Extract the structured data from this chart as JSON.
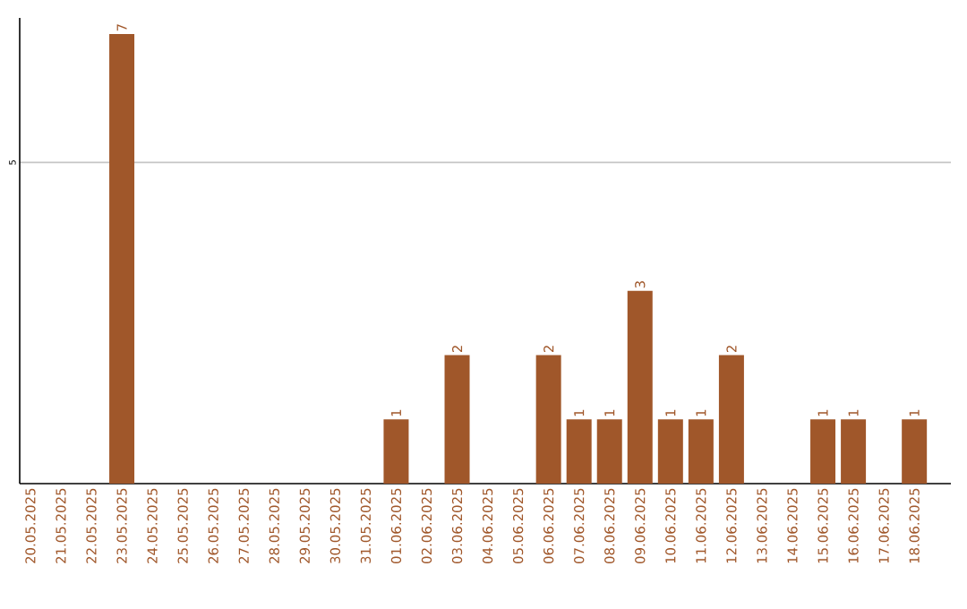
{
  "chart_data": {
    "type": "bar",
    "categories": [
      "20.05.2025",
      "21.05.2025",
      "22.05.2025",
      "23.05.2025",
      "24.05.2025",
      "25.05.2025",
      "26.05.2025",
      "27.05.2025",
      "28.05.2025",
      "29.05.2025",
      "30.05.2025",
      "31.05.2025",
      "01.06.2025",
      "02.06.2025",
      "03.06.2025",
      "04.06.2025",
      "05.06.2025",
      "06.06.2025",
      "07.06.2025",
      "08.06.2025",
      "09.06.2025",
      "10.06.2025",
      "11.06.2025",
      "12.06.2025",
      "13.06.2025",
      "14.06.2025",
      "15.06.2025",
      "16.06.2025",
      "17.06.2025",
      "18.06.2025"
    ],
    "values": [
      0,
      0,
      0,
      7,
      0,
      0,
      0,
      0,
      0,
      0,
      0,
      0,
      1,
      0,
      2,
      0,
      0,
      2,
      1,
      1,
      3,
      1,
      1,
      2,
      0,
      0,
      1,
      1,
      0,
      1
    ],
    "value_labels": [
      null,
      null,
      null,
      "7",
      null,
      null,
      null,
      null,
      null,
      null,
      null,
      null,
      "1",
      null,
      "2",
      null,
      null,
      "2",
      "1",
      "1",
      "3",
      "1",
      "1",
      "2",
      null,
      null,
      "1",
      "1",
      null,
      "1"
    ],
    "color": "#a0572a",
    "ylim": [
      0,
      7.25
    ],
    "yticks": [
      5
    ],
    "grid": "y"
  }
}
